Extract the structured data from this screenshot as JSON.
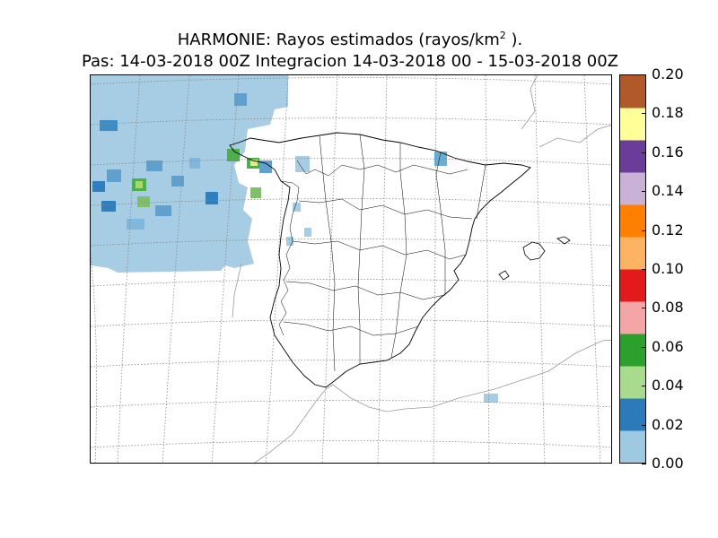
{
  "title_line1_pre": "HARMONIE: Rayos estimados  (rayos/km",
  "title_line1_sup": "2",
  "title_line1_post": " ).",
  "title_line2": "Pas: 14-03-2018 00Z Integracion 14-03-2018 00 - 15-03-2018 00Z",
  "colorbar": {
    "ticks": [
      "0.00",
      "0.02",
      "0.04",
      "0.06",
      "0.08",
      "0.10",
      "0.12",
      "0.14",
      "0.16",
      "0.18",
      "0.20"
    ],
    "min": 0.0,
    "max": 0.2,
    "colors": [
      "#9ecae1",
      "#2b7bba",
      "#a8dc8c",
      "#2ca02c",
      "#f4a6a6",
      "#e31a1c",
      "#fdb462",
      "#ff7f00",
      "#cab2d6",
      "#6a3d9a",
      "#ffff99",
      "#b15928"
    ]
  },
  "map": {
    "region": "Iberian Peninsula",
    "colors": {
      "rain_light": "#a6cde3",
      "rain_mid": "#5fa0cf",
      "rain_dark": "#2f7fbf",
      "green_light": "#a6d96a",
      "green": "#4daf4a",
      "grid": "#888888",
      "coast": "#000000"
    }
  }
}
